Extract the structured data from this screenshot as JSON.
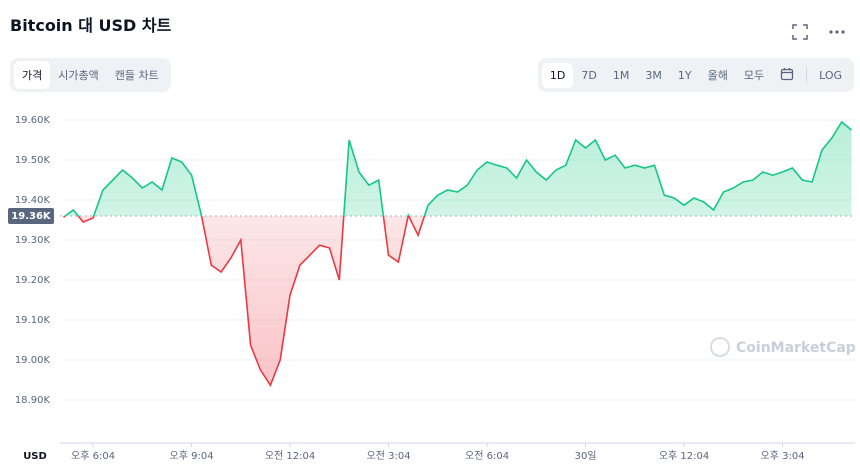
{
  "chart_data": {
    "type": "line",
    "title": "Bitcoin 대 USD 차트",
    "x_label": "USD",
    "watermark": "CoinMarketCap",
    "x": [
      0,
      1,
      2,
      3,
      4,
      5,
      6,
      7,
      8,
      9,
      10,
      11,
      12,
      13,
      14,
      15,
      16,
      17,
      18,
      19,
      20,
      21,
      22,
      23,
      24,
      25,
      26,
      27,
      28,
      29,
      30,
      31,
      32,
      33,
      34,
      35,
      36,
      37,
      38,
      39,
      40,
      41,
      42,
      43,
      44,
      45,
      46,
      47,
      48,
      49,
      50,
      51,
      52,
      53,
      54,
      55,
      56,
      57,
      58,
      59,
      60,
      61,
      62,
      63,
      64,
      65,
      66,
      67,
      68,
      69,
      70,
      71,
      72,
      73,
      74,
      75,
      76,
      77,
      78,
      79,
      80
    ],
    "series": [
      {
        "name": "가격",
        "values": [
          19357,
          19375,
          19345,
          19355,
          19425,
          19450,
          19475,
          19455,
          19430,
          19445,
          19425,
          19505,
          19495,
          19462,
          19362,
          19237,
          19220,
          19255,
          19300,
          19037,
          18975,
          18937,
          19000,
          19162,
          19237,
          19262,
          19287,
          19280,
          19200,
          19550,
          19470,
          19437,
          19450,
          19262,
          19245,
          19362,
          19312,
          19387,
          19412,
          19425,
          19420,
          19437,
          19475,
          19495,
          19487,
          19480,
          19455,
          19500,
          19470,
          19450,
          19475,
          19487,
          19550,
          19530,
          19550,
          19500,
          19512,
          19480,
          19487,
          19480,
          19487,
          19412,
          19405,
          19387,
          19405,
          19395,
          19375,
          19420,
          19430,
          19445,
          19450,
          19470,
          19462,
          19470,
          19480,
          19450,
          19445,
          19525,
          19555,
          19595,
          19575
        ]
      }
    ],
    "colors": {
      "above": "#16c784",
      "below": "#ea3943"
    },
    "reference": {
      "value": 19360,
      "label": "19.36K"
    },
    "xlim": [
      0,
      80
    ],
    "xticks": [
      {
        "value": 3,
        "label": "오후 6:04"
      },
      {
        "value": 13,
        "label": "오후 9:04"
      },
      {
        "value": 23,
        "label": "오전 12:04"
      },
      {
        "value": 33,
        "label": "오전 3:04"
      },
      {
        "value": 43,
        "label": "오전 6:04"
      },
      {
        "value": 53,
        "label": "30일"
      },
      {
        "value": 63,
        "label": "오후 12:04"
      },
      {
        "value": 73,
        "label": "오후 3:04"
      }
    ],
    "ylim": [
      18800,
      19650
    ],
    "yticks": [
      {
        "value": 18900,
        "label": "18.90K"
      },
      {
        "value": 19000,
        "label": "19.00K"
      },
      {
        "value": 19100,
        "label": "19.10K"
      },
      {
        "value": 19200,
        "label": "19.20K"
      },
      {
        "value": 19300,
        "label": "19.30K"
      },
      {
        "value": 19400,
        "label": "19.40K"
      },
      {
        "value": 19500,
        "label": "19.50K"
      },
      {
        "value": 19600,
        "label": "19.60K"
      }
    ],
    "grid": true
  },
  "toolbar": {
    "tabs": [
      "가격",
      "시가총액",
      "캔들 차트"
    ],
    "ranges": [
      "1D",
      "7D",
      "1M",
      "3M",
      "1Y",
      "올해",
      "모두"
    ],
    "log": "LOG"
  }
}
